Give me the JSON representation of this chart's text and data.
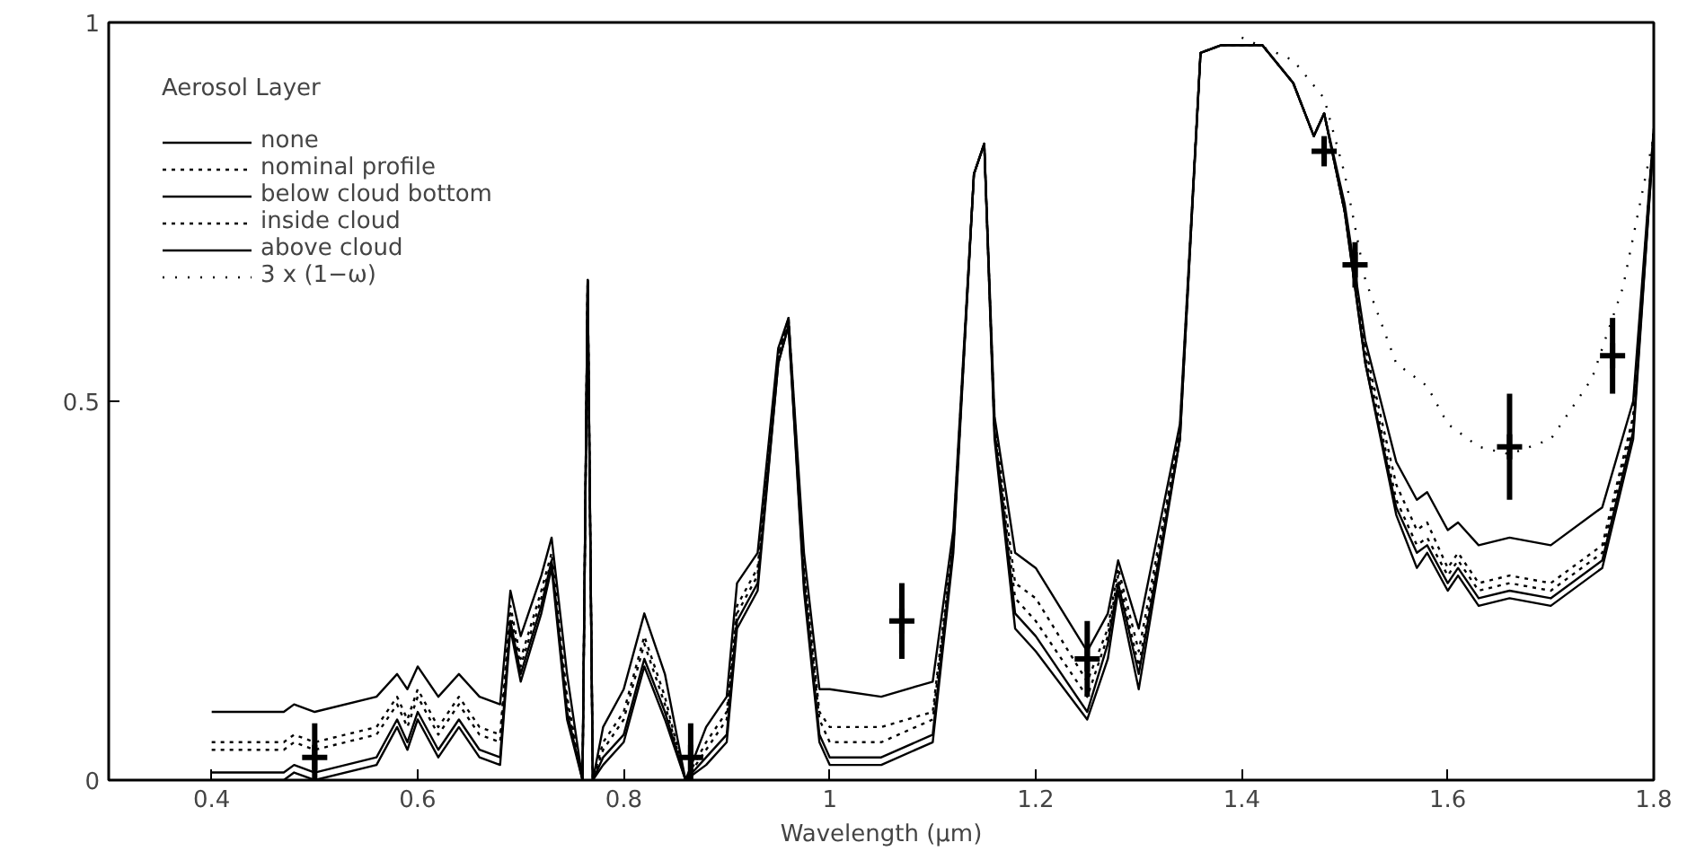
{
  "chart_data": {
    "type": "line",
    "xlabel": "Wavelength (μm)",
    "legend_title": "Aerosol Layer",
    "legend": "top left",
    "grid": false,
    "xlim": [
      0.3,
      1.8
    ],
    "xticks": [
      0.4,
      0.6,
      0.8,
      {
        "value": 1.0,
        "label": "1"
      },
      1.2,
      1.4,
      1.6,
      1.8
    ],
    "ylim": [
      0,
      1
    ],
    "yticks": [
      0,
      0.5,
      1
    ],
    "x": [
      0.4,
      0.47,
      0.48,
      0.5,
      0.56,
      0.58,
      0.59,
      0.6,
      0.62,
      0.64,
      0.66,
      0.68,
      0.69,
      0.7,
      0.72,
      0.73,
      0.745,
      0.76,
      0.765,
      0.77,
      0.78,
      0.8,
      0.82,
      0.84,
      0.86,
      0.88,
      0.9,
      0.91,
      0.93,
      0.95,
      0.96,
      0.975,
      0.99,
      1.0,
      1.05,
      1.1,
      1.12,
      1.14,
      1.15,
      1.16,
      1.18,
      1.2,
      1.25,
      1.27,
      1.28,
      1.3,
      1.34,
      1.36,
      1.38,
      1.42,
      1.45,
      1.47,
      1.48,
      1.5,
      1.52,
      1.55,
      1.57,
      1.58,
      1.6,
      1.61,
      1.63,
      1.66,
      1.7,
      1.75,
      1.78,
      1.8
    ],
    "series": [
      {
        "name": "none",
        "color": "#000000",
        "line_style": "solid",
        "values": [
          0.0,
          0.0,
          0.01,
          0.0,
          0.02,
          0.07,
          0.04,
          0.08,
          0.03,
          0.07,
          0.03,
          0.02,
          0.2,
          0.13,
          0.22,
          0.28,
          0.08,
          0.0,
          0.66,
          0.0,
          0.02,
          0.05,
          0.15,
          0.08,
          0.0,
          0.02,
          0.05,
          0.2,
          0.25,
          0.55,
          0.6,
          0.25,
          0.05,
          0.02,
          0.02,
          0.05,
          0.3,
          0.8,
          0.84,
          0.45,
          0.2,
          0.17,
          0.08,
          0.16,
          0.25,
          0.12,
          0.45,
          0.96,
          0.97,
          0.97,
          0.92,
          0.85,
          0.88,
          0.75,
          0.55,
          0.35,
          0.28,
          0.3,
          0.25,
          0.27,
          0.23,
          0.24,
          0.23,
          0.28,
          0.45,
          0.85
        ]
      },
      {
        "name": "nominal profile",
        "color": "#000000",
        "line_style": "dotted",
        "values": [
          0.04,
          0.04,
          0.05,
          0.04,
          0.06,
          0.1,
          0.07,
          0.11,
          0.06,
          0.1,
          0.06,
          0.05,
          0.22,
          0.15,
          0.24,
          0.29,
          0.1,
          0.0,
          0.66,
          0.0,
          0.04,
          0.08,
          0.18,
          0.1,
          0.0,
          0.04,
          0.08,
          0.22,
          0.27,
          0.56,
          0.61,
          0.27,
          0.08,
          0.05,
          0.05,
          0.08,
          0.31,
          0.8,
          0.84,
          0.46,
          0.24,
          0.21,
          0.11,
          0.19,
          0.27,
          0.15,
          0.46,
          0.96,
          0.97,
          0.97,
          0.92,
          0.85,
          0.88,
          0.75,
          0.56,
          0.37,
          0.31,
          0.32,
          0.27,
          0.29,
          0.25,
          0.26,
          0.25,
          0.3,
          0.47,
          0.86
        ]
      },
      {
        "name": "below cloud bottom",
        "color": "#000000",
        "line_style": "solid",
        "values": [
          0.01,
          0.01,
          0.02,
          0.01,
          0.03,
          0.08,
          0.05,
          0.09,
          0.04,
          0.08,
          0.04,
          0.03,
          0.21,
          0.14,
          0.23,
          0.29,
          0.09,
          0.0,
          0.66,
          0.0,
          0.03,
          0.06,
          0.16,
          0.09,
          0.0,
          0.03,
          0.06,
          0.21,
          0.26,
          0.55,
          0.6,
          0.26,
          0.06,
          0.03,
          0.03,
          0.06,
          0.31,
          0.8,
          0.84,
          0.46,
          0.22,
          0.19,
          0.09,
          0.18,
          0.26,
          0.14,
          0.45,
          0.96,
          0.97,
          0.97,
          0.92,
          0.85,
          0.88,
          0.75,
          0.55,
          0.36,
          0.3,
          0.31,
          0.26,
          0.28,
          0.24,
          0.25,
          0.24,
          0.29,
          0.46,
          0.85
        ]
      },
      {
        "name": "inside cloud",
        "color": "#000000",
        "line_style": "dotted",
        "values": [
          0.05,
          0.05,
          0.06,
          0.05,
          0.07,
          0.11,
          0.08,
          0.12,
          0.07,
          0.11,
          0.07,
          0.06,
          0.23,
          0.16,
          0.25,
          0.3,
          0.11,
          0.0,
          0.66,
          0.0,
          0.05,
          0.09,
          0.19,
          0.11,
          0.0,
          0.05,
          0.09,
          0.23,
          0.28,
          0.56,
          0.61,
          0.28,
          0.09,
          0.07,
          0.07,
          0.09,
          0.32,
          0.8,
          0.84,
          0.47,
          0.26,
          0.24,
          0.13,
          0.2,
          0.28,
          0.17,
          0.46,
          0.96,
          0.97,
          0.97,
          0.92,
          0.85,
          0.88,
          0.75,
          0.57,
          0.39,
          0.33,
          0.34,
          0.28,
          0.3,
          0.26,
          0.27,
          0.26,
          0.31,
          0.48,
          0.86
        ]
      },
      {
        "name": "above cloud",
        "color": "#000000",
        "line_style": "solid",
        "values": [
          0.09,
          0.09,
          0.1,
          0.09,
          0.11,
          0.14,
          0.12,
          0.15,
          0.11,
          0.14,
          0.11,
          0.1,
          0.25,
          0.19,
          0.27,
          0.32,
          0.14,
          0.0,
          0.66,
          0.0,
          0.07,
          0.12,
          0.22,
          0.14,
          0.0,
          0.07,
          0.11,
          0.26,
          0.3,
          0.57,
          0.61,
          0.3,
          0.12,
          0.12,
          0.11,
          0.13,
          0.33,
          0.8,
          0.84,
          0.48,
          0.3,
          0.28,
          0.17,
          0.22,
          0.29,
          0.2,
          0.47,
          0.96,
          0.97,
          0.97,
          0.92,
          0.85,
          0.88,
          0.76,
          0.58,
          0.42,
          0.37,
          0.38,
          0.33,
          0.34,
          0.31,
          0.32,
          0.31,
          0.36,
          0.5,
          0.86
        ]
      },
      {
        "name": "3 x (1−ω)",
        "color": "#000000",
        "line_style": "sparse",
        "x": [
          1.4,
          1.45,
          1.48,
          1.5,
          1.52,
          1.55,
          1.58,
          1.6,
          1.63,
          1.66,
          1.7,
          1.74,
          1.77,
          1.8
        ],
        "values": [
          0.98,
          0.95,
          0.9,
          0.8,
          0.66,
          0.55,
          0.52,
          0.47,
          0.44,
          0.43,
          0.45,
          0.53,
          0.65,
          0.85
        ]
      },
      {
        "type": "scatter",
        "color": "#000000",
        "marker": "cross",
        "x": [
          0.5,
          0.865,
          1.07,
          1.25,
          1.48,
          1.51,
          1.66,
          1.76
        ],
        "values": [
          0.03,
          0.03,
          0.21,
          0.16,
          0.83,
          0.68,
          0.44,
          0.56
        ],
        "errors": [
          0.045,
          0.045,
          0.05,
          0.05,
          0.02,
          0.03,
          0.07,
          0.05
        ]
      }
    ]
  }
}
